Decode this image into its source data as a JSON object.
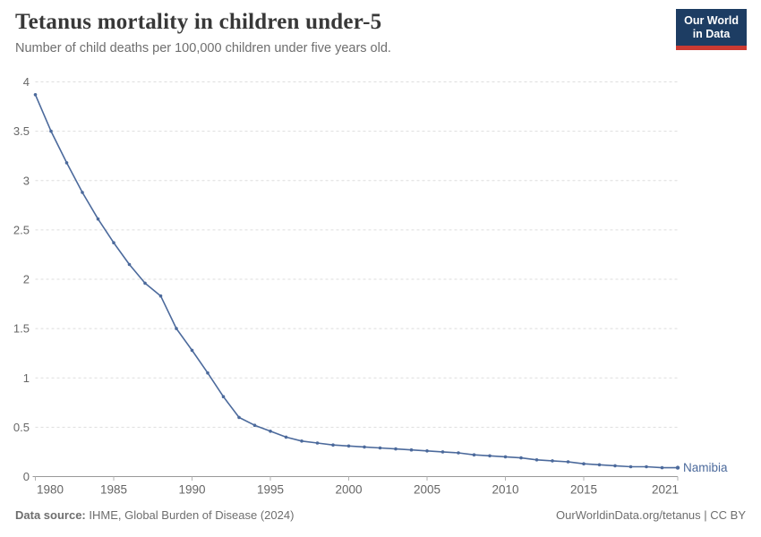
{
  "header": {
    "title": "Tetanus mortality in children under-5",
    "subtitle": "Number of child deaths per 100,000 children under five years old.",
    "logo": {
      "line1": "Our World",
      "line2": "in Data"
    }
  },
  "chart_data": {
    "type": "line",
    "title": "Tetanus mortality in children under-5",
    "subtitle": "Number of child deaths per 100,000 children under five years old.",
    "x": [
      1980,
      1981,
      1982,
      1983,
      1984,
      1985,
      1986,
      1987,
      1988,
      1989,
      1990,
      1991,
      1992,
      1993,
      1994,
      1995,
      1996,
      1997,
      1998,
      1999,
      2000,
      2001,
      2002,
      2003,
      2004,
      2005,
      2006,
      2007,
      2008,
      2009,
      2010,
      2011,
      2012,
      2013,
      2014,
      2015,
      2016,
      2017,
      2018,
      2019,
      2020,
      2021
    ],
    "series": [
      {
        "name": "Namibia",
        "color": "#4c6a9c",
        "values": [
          3.87,
          3.5,
          3.18,
          2.88,
          2.61,
          2.37,
          2.15,
          1.96,
          1.83,
          1.5,
          1.28,
          1.05,
          0.81,
          0.6,
          0.52,
          0.46,
          0.4,
          0.36,
          0.34,
          0.32,
          0.31,
          0.3,
          0.29,
          0.28,
          0.27,
          0.26,
          0.25,
          0.24,
          0.22,
          0.21,
          0.2,
          0.19,
          0.17,
          0.16,
          0.15,
          0.13,
          0.12,
          0.11,
          0.1,
          0.1,
          0.09,
          0.09
        ]
      }
    ],
    "xlabel": "",
    "ylabel": "",
    "xlim": [
      1980,
      2021
    ],
    "ylim": [
      0,
      4
    ],
    "yticks": [
      "0",
      "0.5",
      "1",
      "1.5",
      "2",
      "2.5",
      "3",
      "3.5",
      "4"
    ],
    "ytick_values": [
      0,
      0.5,
      1,
      1.5,
      2,
      2.5,
      3,
      3.5,
      4
    ],
    "xticks": [
      "1980",
      "1985",
      "1990",
      "1995",
      "2000",
      "2005",
      "2010",
      "2015",
      "2021"
    ],
    "xtick_values": [
      1980,
      1985,
      1990,
      1995,
      2000,
      2005,
      2010,
      2015,
      2021
    ],
    "grid": "horizontal-dashed",
    "legend_position": "end-of-line-label",
    "end_label": "Namibia"
  },
  "footer": {
    "source_label": "Data source:",
    "source_text": " IHME, Global Burden of Disease (2024)",
    "credit": "OurWorldinData.org/tetanus | CC BY"
  },
  "colors": {
    "line": "#4c6a9c",
    "logo_background": "#1d3d63",
    "logo_underline": "#cb3a32",
    "gridline": "#dedede",
    "axis_line": "#999999",
    "tick_label": "#666666",
    "title_text": "#383838",
    "subtitle_text": "#6e6e6e"
  }
}
